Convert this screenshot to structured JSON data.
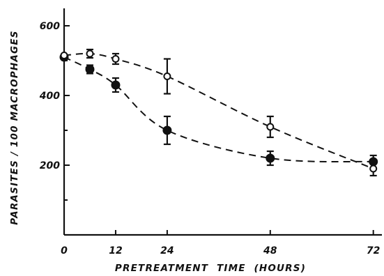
{
  "chart_data": {
    "type": "line",
    "title": "",
    "xlabel": "PRETREATMENT  TIME  (HOURS)",
    "ylabel": "PARASITES / 100 MACROPHAGES",
    "xlim": [
      0,
      74
    ],
    "ylim": [
      0,
      650
    ],
    "x_ticks": [
      0,
      12,
      24,
      48,
      72
    ],
    "x_tick_labels": [
      "0",
      "12",
      "24",
      "48",
      "72"
    ],
    "y_ticks": [
      200,
      400,
      600
    ],
    "y_tick_labels": [
      "200",
      "400",
      "600"
    ],
    "minor_y_ticks": [
      100,
      300,
      500
    ],
    "grid": false,
    "legend": "none",
    "series": [
      {
        "marker": "open-circle",
        "x": [
          0,
          6,
          12,
          24,
          48,
          72
        ],
        "y": [
          515,
          520,
          505,
          455,
          310,
          190
        ],
        "err": [
          0,
          12,
          15,
          50,
          30,
          20
        ]
      },
      {
        "marker": "filled-circle",
        "x": [
          0,
          6,
          12,
          24,
          48,
          72
        ],
        "y": [
          510,
          475,
          430,
          300,
          220,
          210
        ],
        "err": [
          0,
          12,
          20,
          40,
          20,
          18
        ]
      }
    ]
  }
}
